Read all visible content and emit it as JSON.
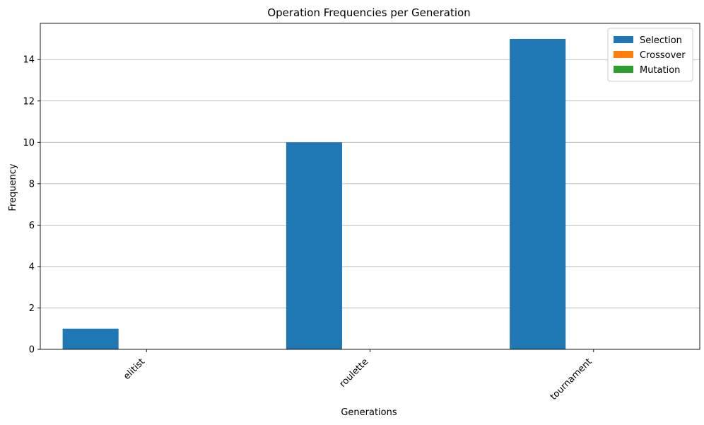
{
  "chart_data": {
    "type": "bar",
    "title": "Operation Frequencies per Generation",
    "xlabel": "Generations",
    "ylabel": "Frequency",
    "categories": [
      "elitist",
      "roulette",
      "tournament"
    ],
    "series": [
      {
        "name": "Selection",
        "values": [
          1,
          10,
          15
        ],
        "color": "#1f77b4"
      },
      {
        "name": "Crossover",
        "values": [
          0,
          0,
          0
        ],
        "color": "#ff7f0e"
      },
      {
        "name": "Mutation",
        "values": [
          0,
          0,
          0
        ],
        "color": "#2ca02c"
      }
    ],
    "ylim": [
      0,
      15.75
    ],
    "yticks": [
      0,
      2,
      4,
      6,
      8,
      10,
      12,
      14
    ],
    "grid": "y",
    "legend": "top-right",
    "xtick_rotation": 45
  }
}
